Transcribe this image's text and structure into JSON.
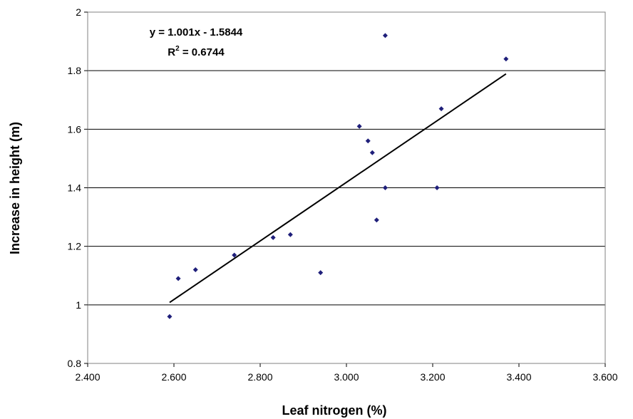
{
  "chart_data": {
    "type": "scatter",
    "title": "",
    "xlabel": "Leaf nitrogen (%)",
    "ylabel": "Increase in height (m)",
    "xlim": [
      2.4,
      3.6
    ],
    "ylim": [
      0.8,
      2.0
    ],
    "x_ticks": [
      "2.400",
      "2.600",
      "2.800",
      "3.000",
      "3.200",
      "3.400",
      "3.600"
    ],
    "y_ticks": [
      "0.8",
      "1",
      "1.2",
      "1.4",
      "1.6",
      "1.8",
      "2"
    ],
    "grid": "horizontal",
    "legend": "none",
    "colors": {
      "points": "#1f1f7a",
      "trendline": "#000000",
      "gridlines": "#000000"
    },
    "series": [
      {
        "points": [
          {
            "x": 2.59,
            "y": 0.96
          },
          {
            "x": 2.61,
            "y": 1.09
          },
          {
            "x": 2.65,
            "y": 1.12
          },
          {
            "x": 2.74,
            "y": 1.17
          },
          {
            "x": 2.83,
            "y": 1.23
          },
          {
            "x": 2.87,
            "y": 1.24
          },
          {
            "x": 2.94,
            "y": 1.11
          },
          {
            "x": 3.03,
            "y": 1.61
          },
          {
            "x": 3.05,
            "y": 1.56
          },
          {
            "x": 3.06,
            "y": 1.52
          },
          {
            "x": 3.07,
            "y": 1.29
          },
          {
            "x": 3.09,
            "y": 1.4
          },
          {
            "x": 3.09,
            "y": 1.92
          },
          {
            "x": 3.21,
            "y": 1.4
          },
          {
            "x": 3.22,
            "y": 1.67
          },
          {
            "x": 3.37,
            "y": 1.84
          }
        ]
      }
    ],
    "trendline": {
      "type": "linear",
      "slope": 1.001,
      "intercept": -1.5844,
      "x_range": [
        2.59,
        3.37
      ],
      "equation": "y = 1.001x - 1.5844",
      "r2_prefix": "R",
      "r2_superscript": "2",
      "r2_value": " = 0.6744"
    }
  }
}
